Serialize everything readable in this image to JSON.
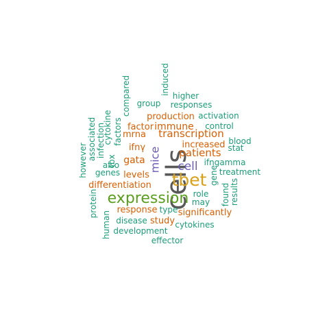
{
  "palette": {
    "gray": "#595959",
    "gold": "#d9a01a",
    "green": "#5a9e1e",
    "purple": "#6c5bb4",
    "orange": "#d95f02",
    "teal": "#1b9e77"
  },
  "words": [
    {
      "id": "cells",
      "text": "cells",
      "color": "gray"
    },
    {
      "id": "tbet",
      "text": "tbet",
      "color": "gold"
    },
    {
      "id": "expression",
      "text": "expression",
      "color": "green"
    },
    {
      "id": "mice",
      "text": "mice",
      "color": "purple"
    },
    {
      "id": "cell",
      "text": "cell",
      "color": "purple"
    },
    {
      "id": "transcription",
      "text": "transcription",
      "color": "orange"
    },
    {
      "id": "patients",
      "text": "patients",
      "color": "orange"
    },
    {
      "id": "immune",
      "text": "immune",
      "color": "orange"
    },
    {
      "id": "production",
      "text": "production",
      "color": "orange"
    },
    {
      "id": "increased",
      "text": "increased",
      "color": "orange"
    },
    {
      "id": "factor",
      "text": "factor",
      "color": "orange"
    },
    {
      "id": "mrna",
      "text": "mrna",
      "color": "orange"
    },
    {
      "id": "ifny",
      "text": "ifnγ",
      "color": "orange"
    },
    {
      "id": "gata",
      "text": "gata",
      "color": "orange"
    },
    {
      "id": "levels",
      "text": "levels",
      "color": "orange"
    },
    {
      "id": "differentiation",
      "text": "differentiation",
      "color": "orange"
    },
    {
      "id": "response",
      "text": "response",
      "color": "orange"
    },
    {
      "id": "study",
      "text": "study",
      "color": "orange"
    },
    {
      "id": "significantly",
      "text": "significantly",
      "color": "orange"
    },
    {
      "id": "role",
      "text": "role",
      "color": "teal"
    },
    {
      "id": "may",
      "text": "may",
      "color": "teal"
    },
    {
      "id": "ifngamma",
      "text": "ifngamma",
      "color": "teal"
    },
    {
      "id": "treatment",
      "text": "treatment",
      "color": "teal"
    },
    {
      "id": "stat",
      "text": "stat",
      "color": "teal"
    },
    {
      "id": "blood",
      "text": "blood",
      "color": "teal"
    },
    {
      "id": "control",
      "text": "control",
      "color": "teal"
    },
    {
      "id": "activation",
      "text": "activation",
      "color": "teal"
    },
    {
      "id": "responses",
      "text": "responses",
      "color": "teal"
    },
    {
      "id": "higher",
      "text": "higher",
      "color": "teal"
    },
    {
      "id": "group",
      "text": "group",
      "color": "teal"
    },
    {
      "id": "induced",
      "text": "induced",
      "color": "teal"
    },
    {
      "id": "compared",
      "text": "compared",
      "color": "teal"
    },
    {
      "id": "factors",
      "text": "factors",
      "color": "teal"
    },
    {
      "id": "cytokine",
      "text": "cytokine",
      "color": "teal"
    },
    {
      "id": "infection",
      "text": "infection",
      "color": "teal"
    },
    {
      "id": "associated",
      "text": "associated",
      "color": "teal"
    },
    {
      "id": "however",
      "text": "however",
      "color": "teal"
    },
    {
      "id": "tbx",
      "text": "tbx",
      "color": "teal"
    },
    {
      "id": "also",
      "text": "also",
      "color": "teal"
    },
    {
      "id": "genes",
      "text": "genes",
      "color": "teal"
    },
    {
      "id": "gene",
      "text": "gene",
      "color": "teal"
    },
    {
      "id": "found",
      "text": "found",
      "color": "teal"
    },
    {
      "id": "results",
      "text": "results",
      "color": "teal"
    },
    {
      "id": "protein",
      "text": "protein",
      "color": "teal"
    },
    {
      "id": "human",
      "text": "human",
      "color": "teal"
    },
    {
      "id": "disease",
      "text": "disease",
      "color": "teal"
    },
    {
      "id": "type",
      "text": "type",
      "color": "teal"
    },
    {
      "id": "cytokines",
      "text": "cytokines",
      "color": "teal"
    },
    {
      "id": "development",
      "text": "development",
      "color": "teal"
    },
    {
      "id": "effector",
      "text": "effector",
      "color": "teal"
    }
  ]
}
